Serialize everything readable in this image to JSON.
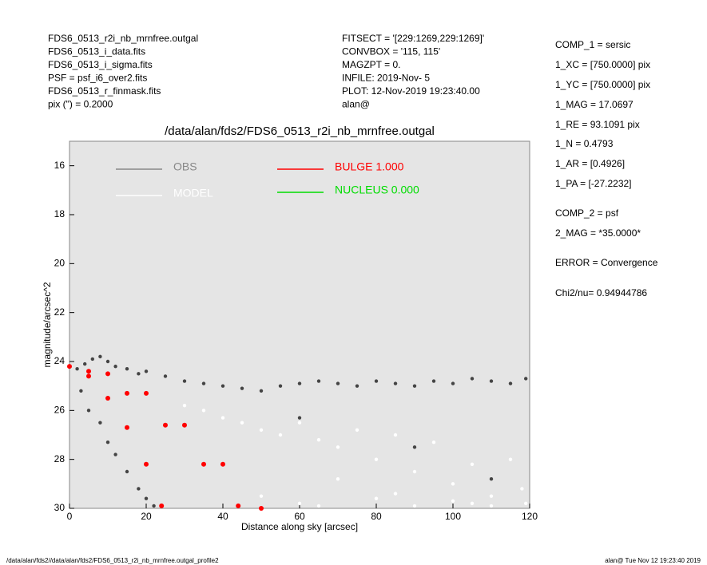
{
  "header": {
    "left": [
      "FDS6_0513_r2i_nb_mrnfree.outgal",
      "FDS6_0513_i_data.fits",
      "FDS6_0513_i_sigma.fits",
      "PSF     = psf_i6_over2.fits",
      "FDS6_0513_r_finmask.fits",
      "pix (\") =  0.2000"
    ],
    "middle": [
      "FITSECT = '[229:1269,229:1269]'",
      "CONVBOX = '115, 115'",
      "MAGZPT  =                0.",
      "INFILE: 2019-Nov- 5",
      "PLOT: 12-Nov-2019 19:23:40.00",
      "alan@"
    ],
    "right": [
      "COMP_1  = sersic",
      "1_XC    = [750.0000] pix",
      "1_YC    = [750.0000] pix",
      "1_MAG   = 17.0697",
      "1_RE    = 93.1091 pix",
      "1_N     = 0.4793",
      "1_AR    = [0.4926]",
      "1_PA    = [-27.2232]",
      "COMP_2  = psf",
      "2_MAG   = *35.0000*",
      "ERROR   = Convergence",
      "Chi2/nu=       0.94944786"
    ]
  },
  "footer": {
    "left": "/data/alan/fds2//data/alan/fds2/FDS6_0513_r2i_nb_mrnfree.outgal_profile2",
    "right": "alan@   Tue Nov 12 19:23:40 2019"
  },
  "chart_data": {
    "type": "scatter",
    "title": "/data/alan/fds2/FDS6_0513_r2i_nb_mrnfree.outgal",
    "xlabel": "Distance along sky [arcsec]",
    "ylabel": "magnitude/arcsec^2",
    "xlim": [
      0,
      120
    ],
    "xticks": [
      0,
      20,
      40,
      60,
      80,
      100,
      120
    ],
    "ylim": [
      15,
      30
    ],
    "yticks": [
      16,
      18,
      20,
      22,
      24,
      26,
      28,
      30
    ],
    "y_inverted": true,
    "series": [
      {
        "name": "OBS",
        "color": "#444444",
        "legend_color": "#888888",
        "x": [
          2,
          4,
          6,
          8,
          10,
          12,
          15,
          18,
          20,
          25,
          30,
          35,
          40,
          45,
          50,
          55,
          60,
          65,
          70,
          75,
          80,
          85,
          90,
          95,
          100,
          105,
          110,
          115,
          119,
          3,
          5,
          8,
          10,
          12,
          15,
          18,
          20,
          22,
          60,
          90,
          110
        ],
        "values": [
          24.3,
          24.1,
          23.9,
          23.8,
          24.0,
          24.2,
          24.3,
          24.5,
          24.4,
          24.6,
          24.8,
          24.9,
          25.0,
          25.1,
          25.2,
          25.0,
          24.9,
          24.8,
          24.9,
          25.0,
          24.8,
          24.9,
          25.0,
          24.8,
          24.9,
          24.7,
          24.8,
          24.9,
          24.7,
          25.2,
          26.0,
          26.5,
          27.3,
          27.8,
          28.5,
          29.2,
          29.6,
          29.9,
          26.3,
          27.5,
          28.8
        ]
      },
      {
        "name": "MODEL",
        "color": "#ffffff",
        "legend_color": "#ffffff",
        "x": [
          30,
          35,
          40,
          45,
          50,
          55,
          60,
          65,
          70,
          75,
          80,
          85,
          90,
          95,
          100,
          105,
          110,
          115,
          119,
          50,
          60,
          70,
          80,
          90,
          100,
          110,
          118,
          65,
          85,
          105
        ],
        "values": [
          25.8,
          26.0,
          26.3,
          26.5,
          26.8,
          27.0,
          26.5,
          27.2,
          27.5,
          26.8,
          28.0,
          27.0,
          28.5,
          27.3,
          29.0,
          28.2,
          29.5,
          28.0,
          29.8,
          29.5,
          29.8,
          28.8,
          29.6,
          29.9,
          29.7,
          29.9,
          29.2,
          29.9,
          29.4,
          29.8
        ]
      },
      {
        "name": "BULGE  1.000",
        "color": "#ff0000",
        "legend_color": "#ff0000",
        "x": [
          0,
          5,
          10,
          15,
          20,
          24,
          10,
          20,
          30,
          40,
          50,
          5,
          15,
          25,
          35,
          44
        ],
        "values": [
          24.2,
          24.6,
          25.5,
          26.7,
          28.2,
          29.9,
          24.5,
          25.3,
          26.6,
          28.2,
          30.0,
          24.4,
          25.3,
          26.6,
          28.2,
          29.9
        ]
      },
      {
        "name": "NUCLEUS  0.000",
        "color": "#00dd00",
        "legend_color": "#00dd00",
        "x": [],
        "values": []
      }
    ]
  }
}
